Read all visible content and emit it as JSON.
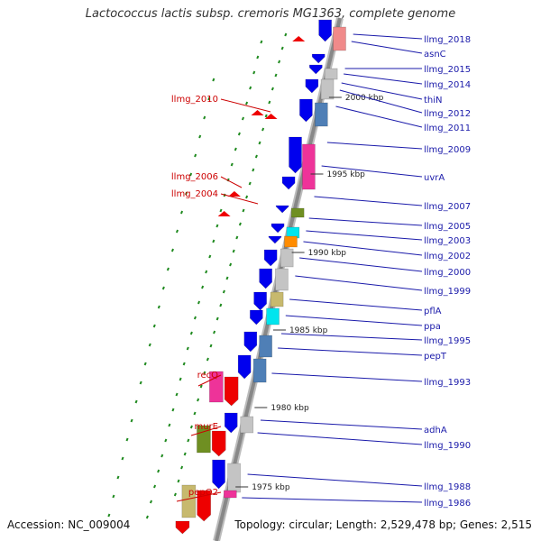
{
  "title": "Lactococcus lactis subsp. cremoris MG1363, complete genome",
  "accession_text": "Accession: NC_009004",
  "topology_text": "Topology: circular; Length: 2,529,478 bp; Genes: 2,515",
  "colors": {
    "backbone": "#888888",
    "label_right": "#1a1aaa",
    "label_left": "#cc0000",
    "forward_cds": "#0000ee",
    "reverse_cds": "#ee0000",
    "gc_dash": "#1f8a1f",
    "kbp_tick": "#333333"
  },
  "labels_right": [
    "llmg_2018",
    "asnC",
    "llmg_2015",
    "llmg_2014",
    "thiN",
    "llmg_2012",
    "llmg_2011",
    "llmg_2009",
    "uvrA",
    "llmg_2007",
    "llmg_2005",
    "llmg_2003",
    "llmg_2002",
    "llmg_2000",
    "llmg_1999",
    "pflA",
    "ppa",
    "llmg_1995",
    "pepT",
    "llmg_1993",
    "adhA",
    "llmg_1990",
    "llmg_1988",
    "llmg_1986"
  ],
  "labels_left": [
    "llmg_2010",
    "llmg_2006",
    "llmg_2004",
    "recQ",
    "murE",
    "pepO2"
  ],
  "kbp_markers": [
    "2000 kbp",
    "1995 kbp",
    "1990 kbp",
    "1985 kbp",
    "1980 kbp",
    "1975 kbp"
  ]
}
